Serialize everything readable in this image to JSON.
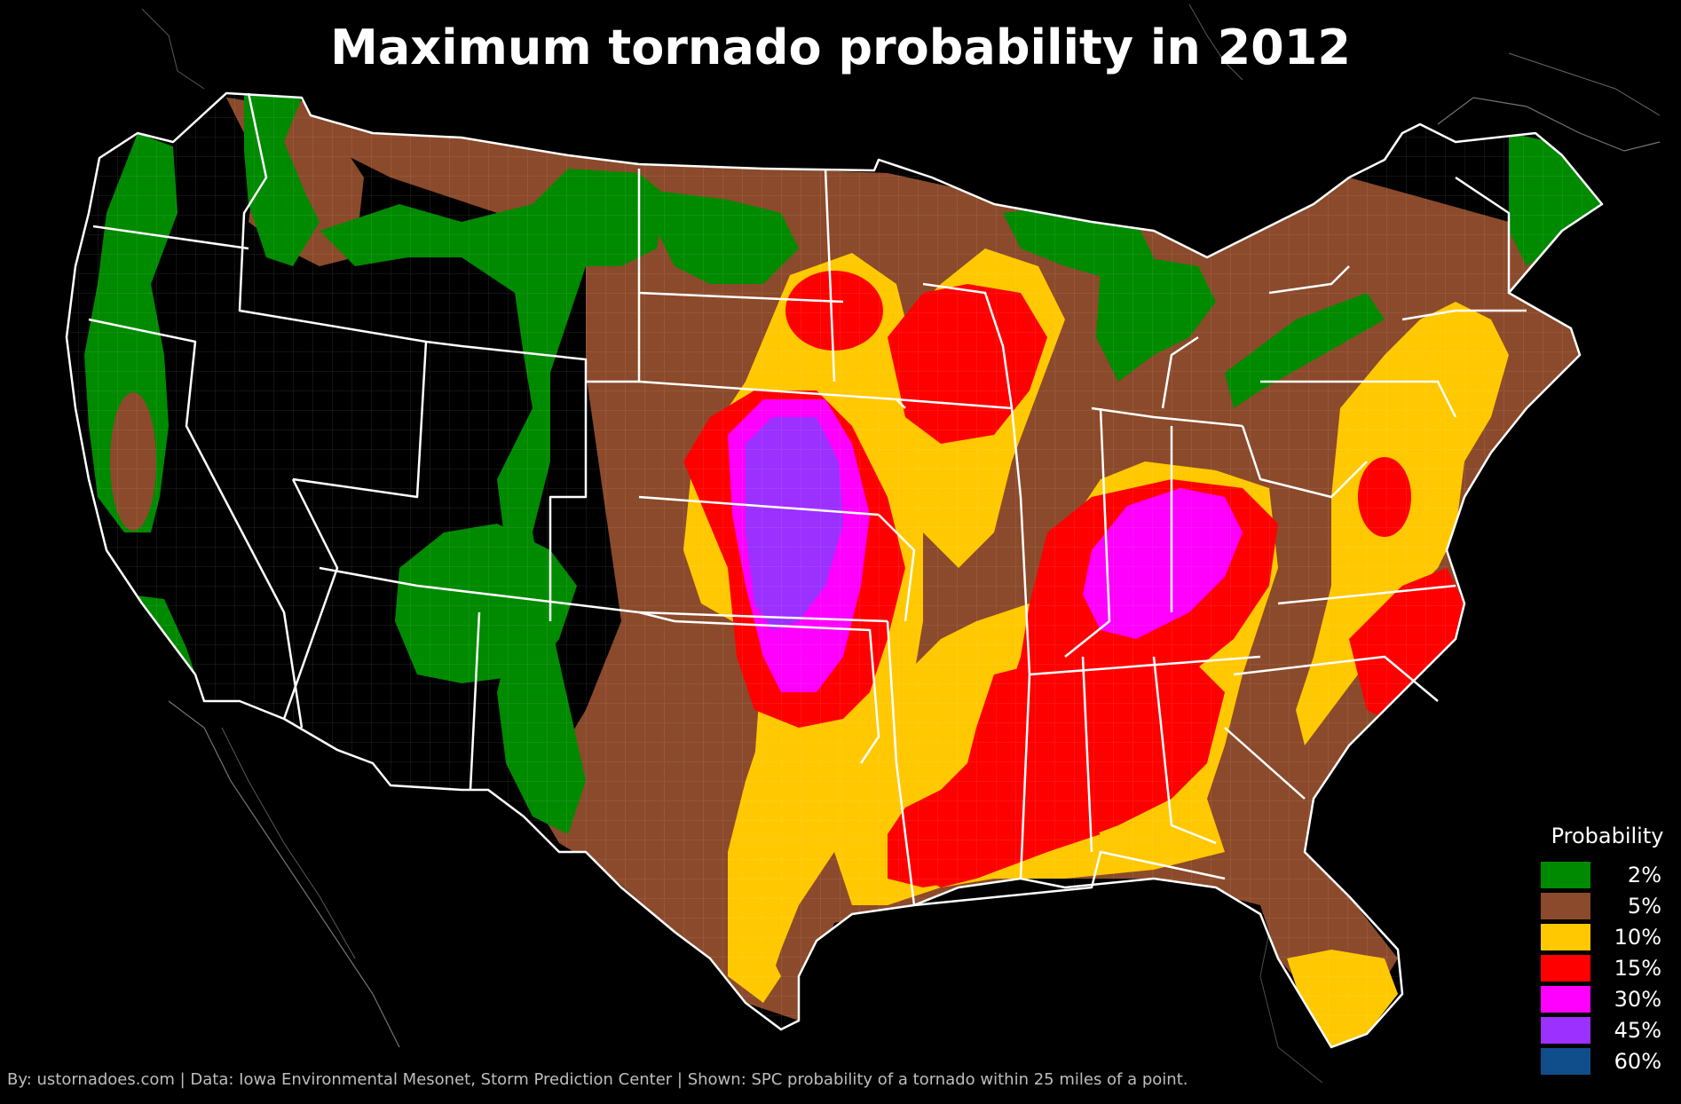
{
  "title": "Maximum tornado probability in 2012",
  "legend": {
    "title": "Probability",
    "items": [
      {
        "label": "2%",
        "color": "#008a00"
      },
      {
        "label": "5%",
        "color": "#8b4a2b"
      },
      {
        "label": "10%",
        "color": "#ffc800"
      },
      {
        "label": "15%",
        "color": "#ff0000"
      },
      {
        "label": "30%",
        "color": "#ff00ff"
      },
      {
        "label": "45%",
        "color": "#9b30ff"
      },
      {
        "label": "60%",
        "color": "#104e8b"
      }
    ]
  },
  "credits": "By: ustornadoes.com | Data: Iowa Environmental Mesonet, Storm Prediction Center | Shown: SPC probability of a tornado within 25 miles of a point.",
  "colors": {
    "background": "#000000",
    "state_lines": "#ffffff",
    "county_lines": "#cccccc"
  }
}
